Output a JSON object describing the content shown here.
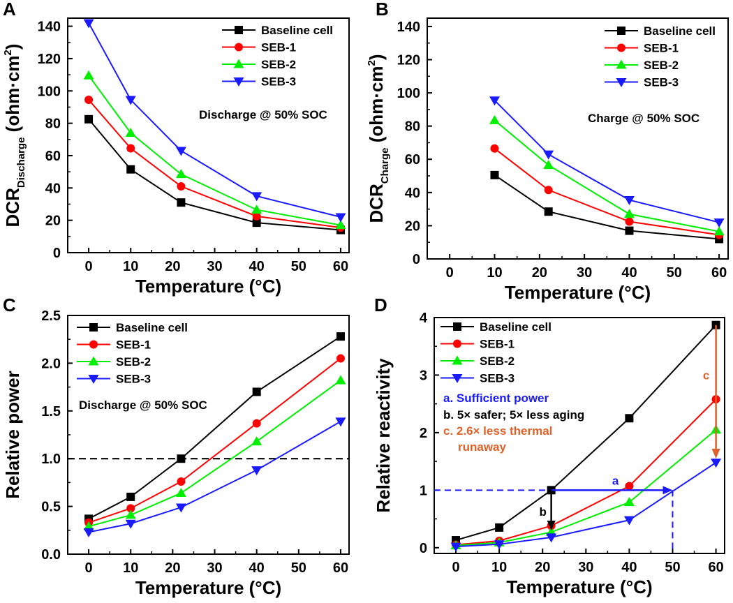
{
  "colors": {
    "Baseline cell": "#000000",
    "SEB-1": "#ff0000",
    "SEB-2": "#00ee00",
    "SEB-3": "#1a1aff",
    "annot_a": "#1a1aff",
    "annot_b": "#000000",
    "annot_c": "#e0622a"
  },
  "chart_data": [
    {
      "panel": "A",
      "type": "line",
      "title": "",
      "xlabel": "Temperature (°C)",
      "ylabel_main": "DCR",
      "ylabel_sub": "Discharge",
      "ylabel_unit": " (ohm·cm",
      "ylabel_sup": "2",
      "ylabel_end": ")",
      "xlim": [
        -5,
        62
      ],
      "ylim": [
        0,
        145
      ],
      "xticks": [
        0,
        10,
        20,
        30,
        40,
        50,
        60
      ],
      "yticks": [
        0,
        20,
        40,
        60,
        80,
        100,
        120,
        140
      ],
      "legend_position": "top-right",
      "annotation": "Discharge @ 50% SOC",
      "series": [
        {
          "name": "Baseline cell",
          "marker": "square",
          "x": [
            0,
            10,
            22,
            40,
            60
          ],
          "y": [
            82.5,
            51.5,
            31,
            18.5,
            14
          ]
        },
        {
          "name": "SEB-1",
          "marker": "circle",
          "x": [
            0,
            10,
            22,
            40,
            60
          ],
          "y": [
            94.5,
            64.5,
            41,
            22.5,
            15.5
          ]
        },
        {
          "name": "SEB-2",
          "marker": "triangle-up",
          "x": [
            0,
            10,
            22,
            40,
            60
          ],
          "y": [
            109.5,
            74,
            48.5,
            26.5,
            17
          ]
        },
        {
          "name": "SEB-3",
          "marker": "triangle-down",
          "x": [
            0,
            10,
            22,
            40,
            60
          ],
          "y": [
            142,
            94.5,
            63,
            35,
            22
          ]
        }
      ]
    },
    {
      "panel": "B",
      "type": "line",
      "title": "",
      "xlabel": "Temperature (°C)",
      "ylabel_main": "DCR",
      "ylabel_sub": "Charge",
      "ylabel_unit": " (ohm·cm",
      "ylabel_sup": "2",
      "ylabel_end": ")",
      "xlim": [
        -5,
        62
      ],
      "ylim": [
        0,
        145
      ],
      "xticks": [
        0,
        10,
        20,
        30,
        40,
        50,
        60
      ],
      "yticks": [
        0,
        20,
        40,
        60,
        80,
        100,
        120,
        140
      ],
      "legend_position": "top-right",
      "annotation": "Charge @ 50% SOC",
      "series": [
        {
          "name": "Baseline cell",
          "marker": "square",
          "x": [
            10,
            22,
            40,
            60
          ],
          "y": [
            50.5,
            28.5,
            17,
            12
          ]
        },
        {
          "name": "SEB-1",
          "marker": "circle",
          "x": [
            10,
            22,
            40,
            60
          ],
          "y": [
            66.5,
            41.5,
            22.5,
            14.5
          ]
        },
        {
          "name": "SEB-2",
          "marker": "triangle-up",
          "x": [
            10,
            22,
            40,
            60
          ],
          "y": [
            83.5,
            56.5,
            27,
            16.5
          ]
        },
        {
          "name": "SEB-3",
          "marker": "triangle-down",
          "x": [
            10,
            22,
            40,
            60
          ],
          "y": [
            95.5,
            63,
            35.5,
            22
          ]
        }
      ]
    },
    {
      "panel": "C",
      "type": "line",
      "title": "",
      "xlabel": "Temperature (°C)",
      "ylabel": "Relative power",
      "xlim": [
        -5,
        62
      ],
      "ylim": [
        0,
        2.5
      ],
      "xticks": [
        0,
        10,
        20,
        30,
        40,
        50,
        60
      ],
      "yticks": [
        0.0,
        0.5,
        1.0,
        1.5,
        2.0,
        2.5
      ],
      "ytick_labels": [
        "0.0",
        "0.5",
        "1.0",
        "1.5",
        "2.0",
        "2.5"
      ],
      "legend_position": "top-left",
      "annotation": "Discharge @ 50% SOC",
      "reference_line_y": 1.0,
      "series": [
        {
          "name": "Baseline cell",
          "marker": "square",
          "x": [
            0,
            10,
            22,
            40,
            60
          ],
          "y": [
            0.37,
            0.6,
            1.0,
            1.7,
            2.28
          ]
        },
        {
          "name": "SEB-1",
          "marker": "circle",
          "x": [
            0,
            10,
            22,
            40,
            60
          ],
          "y": [
            0.33,
            0.48,
            0.76,
            1.37,
            2.05
          ]
        },
        {
          "name": "SEB-2",
          "marker": "triangle-up",
          "x": [
            0,
            10,
            22,
            40,
            60
          ],
          "y": [
            0.29,
            0.41,
            0.64,
            1.18,
            1.82
          ]
        },
        {
          "name": "SEB-3",
          "marker": "triangle-down",
          "x": [
            0,
            10,
            22,
            40,
            60
          ],
          "y": [
            0.23,
            0.32,
            0.49,
            0.88,
            1.39
          ]
        }
      ]
    },
    {
      "panel": "D",
      "type": "line",
      "title": "",
      "xlabel": "Temperature (°C)",
      "ylabel": "Relative reactivity",
      "xlim": [
        -5,
        62
      ],
      "ylim": [
        -0.1,
        4
      ],
      "xticks": [
        0,
        10,
        20,
        30,
        40,
        50,
        60
      ],
      "yticks": [
        0,
        1,
        2,
        3,
        4
      ],
      "legend_position": "top-left",
      "series": [
        {
          "name": "Baseline cell",
          "marker": "square",
          "x": [
            0,
            10,
            22,
            40,
            60
          ],
          "y": [
            0.13,
            0.35,
            1.0,
            2.25,
            3.87
          ]
        },
        {
          "name": "SEB-1",
          "marker": "circle",
          "x": [
            0,
            10,
            22,
            40,
            60
          ],
          "y": [
            0.05,
            0.12,
            0.38,
            1.07,
            2.58
          ]
        },
        {
          "name": "SEB-2",
          "marker": "triangle-up",
          "x": [
            0,
            10,
            22,
            40,
            60
          ],
          "y": [
            0.04,
            0.09,
            0.27,
            0.79,
            2.05
          ]
        },
        {
          "name": "SEB-3",
          "marker": "triangle-down",
          "x": [
            0,
            10,
            22,
            40,
            60
          ],
          "y": [
            0.02,
            0.06,
            0.18,
            0.48,
            1.48
          ]
        }
      ],
      "annotations": {
        "a_text": "a. Sufficient power",
        "b_text": "b. 5× safer; 5× less aging",
        "c_text_1": "c. 2.6× less thermal",
        "c_text_2": "runaway",
        "a_label": "a",
        "b_label": "b",
        "c_label": "c",
        "dashed_point": {
          "x": 50,
          "y": 1.0
        },
        "a_arrow": {
          "from": [
            22,
            1.0
          ],
          "to": [
            50,
            1.0
          ]
        },
        "b_arrow": {
          "from": [
            22,
            1.0
          ],
          "to": [
            22,
            0.3
          ]
        },
        "c_arrow": {
          "from": [
            60,
            3.87
          ],
          "to": [
            60,
            1.55
          ]
        }
      }
    }
  ]
}
